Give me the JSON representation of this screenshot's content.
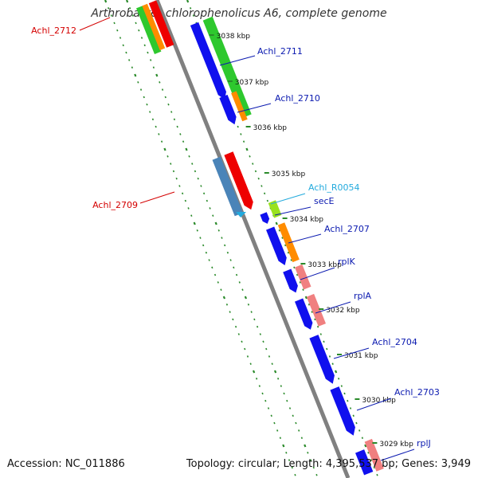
{
  "title": "Arthrobacter chlorophenolicus A6, complete genome",
  "footer": {
    "accession": "Accession: NC_011886",
    "summary": "Topology: circular; Length: 4,395,537 bp; Genes: 3,949"
  },
  "colors": {
    "backbone": "#808080",
    "dots": "#2a8a2a",
    "kbp_tick": "#2a8a2a",
    "gene_label_plus": "#0b1ab0",
    "gene_label_minus": "#d40000",
    "rna_label": "#22aadd"
  },
  "scale": [
    {
      "label": "3038 kbp"
    },
    {
      "label": "3037 kbp"
    },
    {
      "label": "3036 kbp"
    },
    {
      "label": "3035 kbp"
    },
    {
      "label": "3034 kbp"
    },
    {
      "label": "3033 kbp"
    },
    {
      "label": "3032 kbp"
    },
    {
      "label": "3031 kbp"
    },
    {
      "label": "3030 kbp"
    },
    {
      "label": "3029 kbp"
    }
  ],
  "gene_labels": [
    {
      "name": "Achl_2712",
      "strand": "minus"
    },
    {
      "name": "Achl_2711",
      "strand": "plus"
    },
    {
      "name": "Achl_2710",
      "strand": "plus"
    },
    {
      "name": "Achl_2709",
      "strand": "minus"
    },
    {
      "name": "Achl_R0054",
      "strand": "rna"
    },
    {
      "name": "secE",
      "strand": "plus"
    },
    {
      "name": "Achl_2707",
      "strand": "plus"
    },
    {
      "name": "rplK",
      "strand": "plus"
    },
    {
      "name": "rplA",
      "strand": "plus"
    },
    {
      "name": "Achl_2704",
      "strand": "plus"
    },
    {
      "name": "Achl_2703",
      "strand": "plus"
    },
    {
      "name": "rplJ",
      "strand": "plus"
    }
  ]
}
